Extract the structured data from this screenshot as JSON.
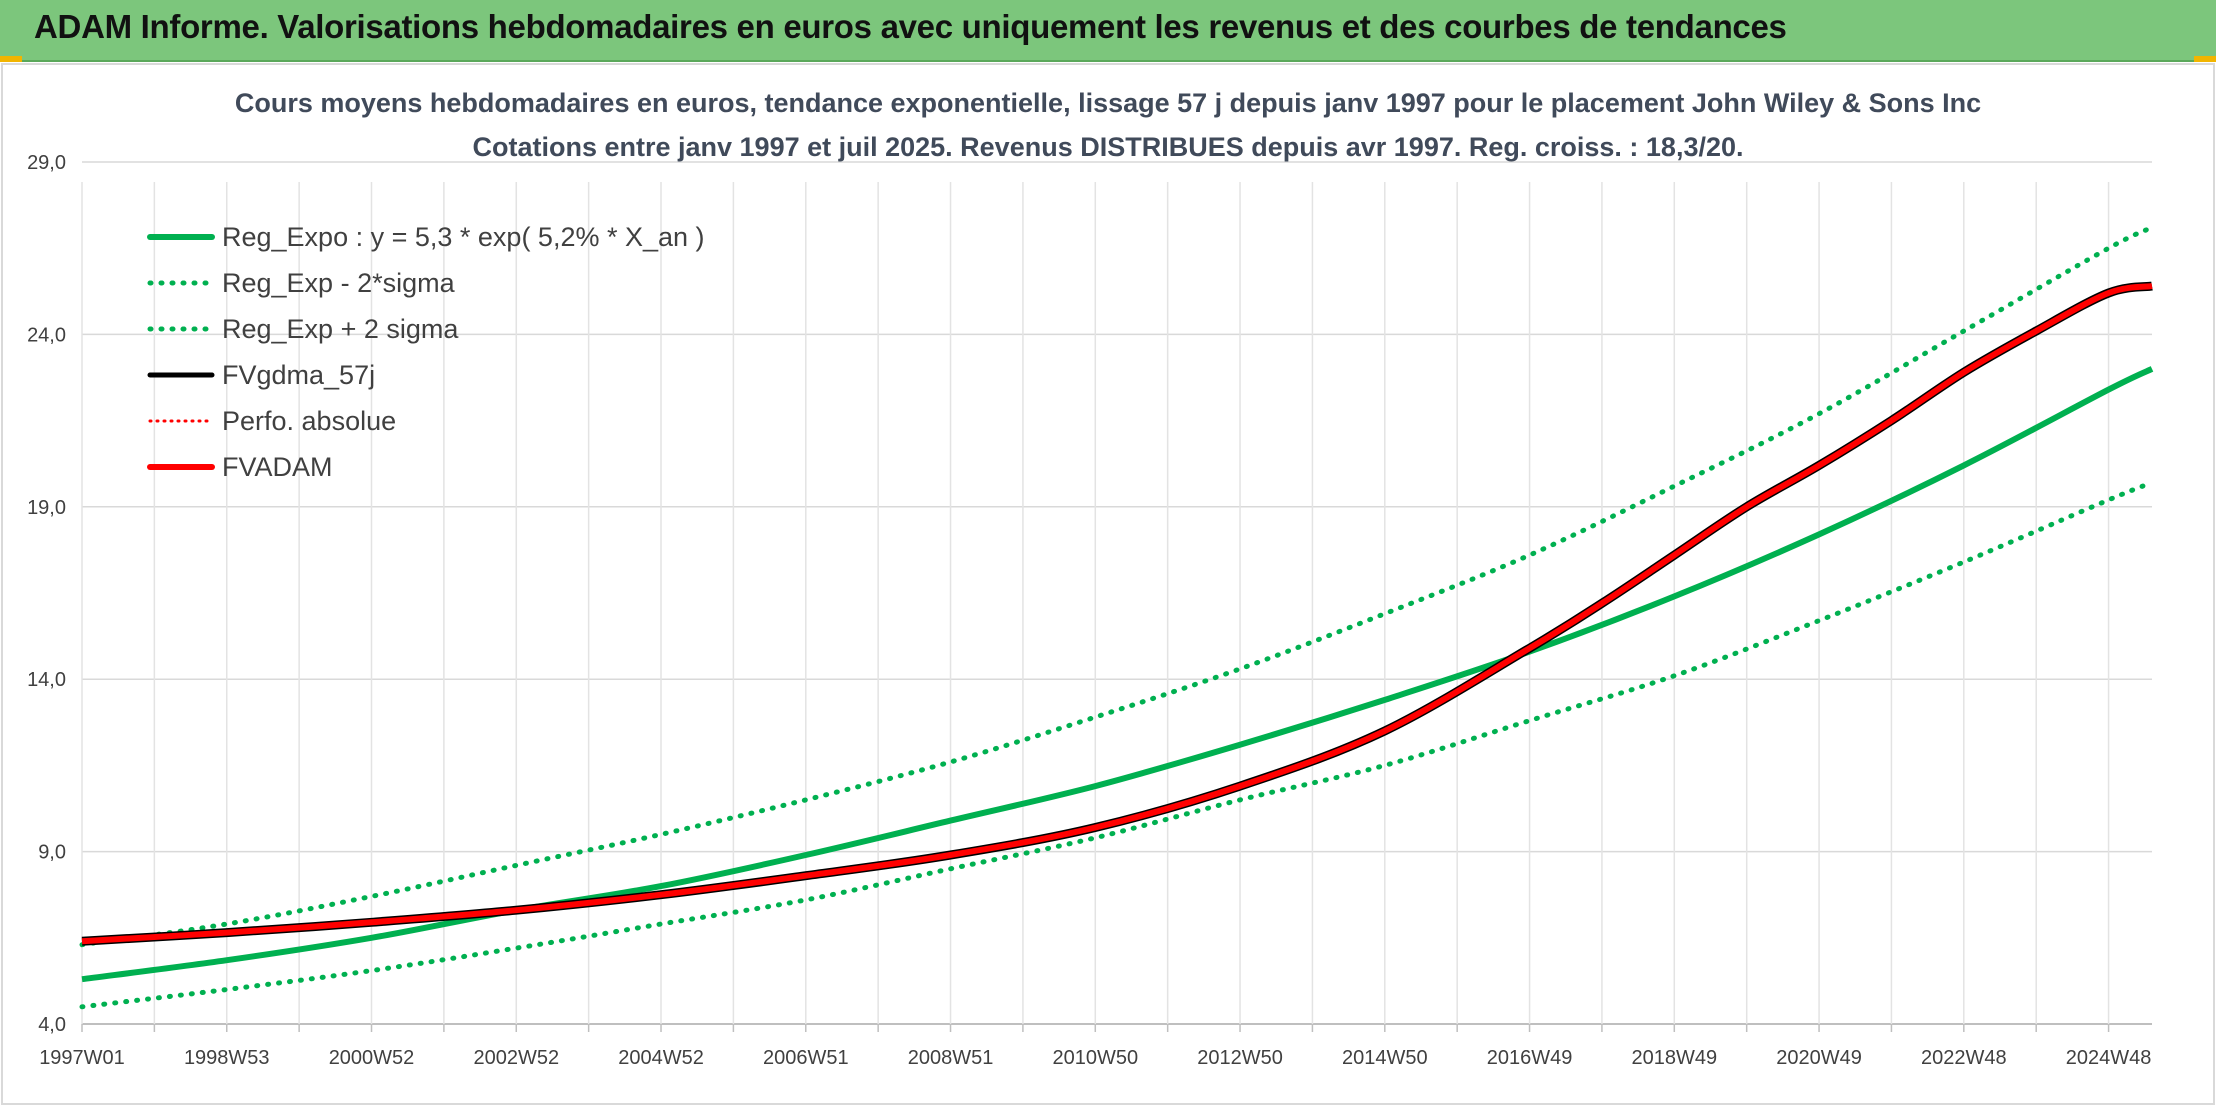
{
  "header": {
    "title": "ADAM Informe. Valorisations hebdomadaires en euros avec uniquement les revenus et des courbes de tendances"
  },
  "chart_data": {
    "type": "line",
    "title_line1": "Cours moyens hebdomadaires en euros, tendance exponentielle, lissage 57 j depuis janv 1997 pour le placement John Wiley & Sons Inc",
    "title_line2": "Cotations entre janv 1997 et juil 2025. Revenus DISTRIBUES depuis avr 1997. Reg. croiss. : 18,3/20.",
    "xlabel": "",
    "ylabel": "",
    "ylim": [
      4.0,
      29.0
    ],
    "y_ticks": [
      "4,0",
      "9,0",
      "14,0",
      "19,0",
      "24,0",
      "29,0"
    ],
    "y_tick_values": [
      4.0,
      9.0,
      14.0,
      19.0,
      24.0,
      29.0
    ],
    "x_range": [
      1997.0,
      2025.6
    ],
    "x_tick_labels": [
      "1997W01",
      "1998W53",
      "2000W52",
      "2002W52",
      "2004W52",
      "2006W51",
      "2008W51",
      "2010W50",
      "2012W50",
      "2014W50",
      "2016W49",
      "2018W49",
      "2020W49",
      "2022W48",
      "2024W48"
    ],
    "x_tick_years": [
      1997.0,
      1999.0,
      2001.0,
      2003.0,
      2005.0,
      2007.0,
      2009.0,
      2011.0,
      2013.0,
      2015.0,
      2017.0,
      2019.0,
      2021.0,
      2023.0,
      2025.0
    ],
    "grid": true,
    "legend_position": "top-left",
    "colors": {
      "reg": "#00b050",
      "band": "#00b050",
      "fvgdma": "#000000",
      "perfo": "#ff0000",
      "fvadam": "#ff0000"
    },
    "legend": [
      {
        "label": "Reg_Expo : y = 5,3 * exp( 5,2% *  X_an )",
        "style": "solid-green"
      },
      {
        "label": "Reg_Exp - 2*sigma",
        "style": "dotted-green"
      },
      {
        "label": "Reg_Exp + 2 sigma",
        "style": "dotted-green"
      },
      {
        "label": "FVgdma_57j",
        "style": "solid-black"
      },
      {
        "label": "Perfo. absolue",
        "style": "dotted-red"
      },
      {
        "label": "FVADAM",
        "style": "solid-red"
      }
    ],
    "series": [
      {
        "name": "Reg_Expo : y = 5,3 * exp( 5,2% *  X_an )",
        "x": [
          1997.0,
          1999.0,
          2001.0,
          2003.0,
          2005.0,
          2007.0,
          2009.0,
          2011.0,
          2013.0,
          2015.0,
          2017.0,
          2019.0,
          2021.0,
          2023.0,
          2025.0,
          2025.6
        ],
        "values": [
          5.3,
          5.85,
          6.5,
          7.3,
          8.0,
          8.9,
          9.9,
          10.9,
          12.1,
          13.4,
          14.8,
          16.4,
          18.2,
          20.2,
          22.4,
          23.0
        ]
      },
      {
        "name": "Reg_Exp - 2*sigma",
        "x": [
          1997.0,
          1999.0,
          2001.0,
          2003.0,
          2005.0,
          2007.0,
          2009.0,
          2011.0,
          2013.0,
          2015.0,
          2017.0,
          2019.0,
          2021.0,
          2023.0,
          2025.0,
          2025.6
        ],
        "values": [
          4.5,
          5.0,
          5.55,
          6.2,
          6.9,
          7.6,
          8.5,
          9.4,
          10.5,
          11.5,
          12.8,
          14.1,
          15.7,
          17.4,
          19.2,
          19.7
        ]
      },
      {
        "name": "Reg_Exp + 2 sigma",
        "x": [
          1997.0,
          1999.0,
          2001.0,
          2003.0,
          2005.0,
          2007.0,
          2009.0,
          2011.0,
          2013.0,
          2015.0,
          2017.0,
          2019.0,
          2021.0,
          2023.0,
          2025.0,
          2025.6
        ],
        "values": [
          6.3,
          6.9,
          7.7,
          8.6,
          9.5,
          10.5,
          11.6,
          12.9,
          14.3,
          15.9,
          17.6,
          19.6,
          21.7,
          24.1,
          26.5,
          27.1
        ]
      },
      {
        "name": "FVADAM",
        "x": [
          1997.0,
          1999.0,
          2001.0,
          2003.0,
          2005.0,
          2007.0,
          2009.0,
          2011.0,
          2013.0,
          2015.0,
          2017.0,
          2018.0,
          2019.0,
          2020.0,
          2021.0,
          2022.0,
          2023.0,
          2024.0,
          2025.0,
          2025.6
        ],
        "values": [
          6.4,
          6.65,
          6.95,
          7.3,
          7.75,
          8.3,
          8.9,
          9.7,
          10.9,
          12.5,
          14.9,
          16.2,
          17.6,
          19.0,
          20.2,
          21.5,
          22.9,
          24.1,
          25.2,
          25.4
        ]
      }
    ]
  }
}
